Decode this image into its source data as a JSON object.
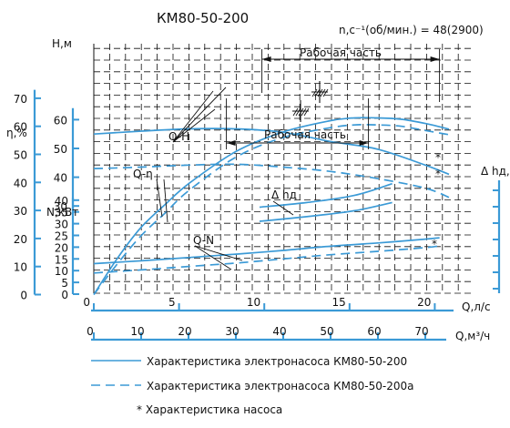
{
  "chart_data": {
    "type": "line",
    "title": "КМ80-50-200",
    "speed_label": "n,с⁻¹(об/мин.) = 48(2900)",
    "q_ls_label": "Q,л/с",
    "q_m3_label": "Q,м³/ч",
    "q_ls_ticks": [
      "0",
      "5",
      "10",
      "15",
      "20"
    ],
    "q_m3_ticks": [
      "0",
      "10",
      "20",
      "30",
      "40",
      "50",
      "60",
      "70"
    ],
    "h_axis": {
      "label": "Н,м",
      "ticks": [
        "30",
        "40",
        "50",
        "60"
      ],
      "range": [
        26,
        64
      ]
    },
    "eta_axis": {
      "label": "η,%",
      "ticks": [
        "0",
        "10",
        "20",
        "30",
        "40",
        "50",
        "60",
        "70"
      ],
      "range": [
        0,
        70
      ]
    },
    "n_axis": {
      "label": "N,кВт",
      "ticks": [
        "0",
        "5",
        "10",
        "15",
        "20",
        "25",
        "30",
        "35",
        "40"
      ],
      "range": [
        0,
        40
      ]
    },
    "npsh_axis": {
      "label": "Δ hд,м"
    },
    "work_range_label": "Рабочая часть",
    "work_range_m3h": [
      35.5,
      73
    ],
    "work_range_a_m3h": [
      28,
      58
    ],
    "markers": [
      "*",
      "*",
      "*"
    ],
    "series": [
      {
        "name": "Q-H",
        "dash": false,
        "axis": "h",
        "q_m3h": [
          0,
          10,
          20,
          30,
          40,
          50,
          60,
          70,
          75
        ],
        "values": [
          55,
          56,
          56.8,
          56.8,
          55.6,
          52.4,
          49.7,
          44.2,
          41
        ]
      },
      {
        "name": "Q-H",
        "dash": true,
        "axis": "h",
        "q_m3h": [
          0,
          10,
          20,
          30,
          40,
          50,
          60,
          70,
          75
        ],
        "values": [
          43,
          43.5,
          44.2,
          44.5,
          43.5,
          42,
          39.5,
          36.2,
          33
        ]
      },
      {
        "name": "Q-η",
        "dash": false,
        "axis": "eta",
        "q_m3h": [
          0,
          5,
          10,
          15,
          20,
          30,
          40,
          50,
          55,
          60,
          65,
          70,
          75
        ],
        "values": [
          0,
          13,
          24,
          32,
          39.5,
          51,
          58,
          62,
          63,
          63,
          62.5,
          61,
          59
        ]
      },
      {
        "name": "Q-η",
        "dash": true,
        "axis": "eta",
        "q_m3h": [
          0,
          5,
          10,
          15,
          20,
          30,
          40,
          50,
          55,
          60,
          65,
          70,
          75
        ],
        "values": [
          0,
          11,
          21,
          29,
          37,
          49,
          56,
          59.5,
          60.5,
          60.5,
          60,
          58.5,
          57
        ]
      },
      {
        "name": "Q-N",
        "dash": false,
        "axis": "n",
        "q_m3h": [
          0,
          10,
          20,
          30,
          40,
          50,
          60,
          70,
          73
        ],
        "values": [
          13,
          14.2,
          15.6,
          17,
          18.6,
          20.4,
          21.8,
          23.4,
          24
        ]
      },
      {
        "name": "Q-N",
        "dash": true,
        "axis": "n",
        "q_m3h": [
          0,
          10,
          20,
          30,
          40,
          50,
          60,
          70,
          73
        ],
        "values": [
          9,
          10.3,
          11.8,
          13.2,
          15,
          16.8,
          18.2,
          19.8,
          20.5
        ]
      },
      {
        "name": "Δ hд",
        "dash": false,
        "axis": "npsh",
        "q_m3h": [
          35,
          45,
          55,
          63
        ],
        "values": [
          37,
          39,
          42,
          47
        ]
      },
      {
        "name": "Δ hд",
        "dash": false,
        "axis": "npsh",
        "q_m3h": [
          35,
          45,
          55,
          63
        ],
        "values": [
          31,
          33,
          35.5,
          39
        ]
      }
    ],
    "grid": true
  },
  "legend": [
    {
      "text": "Характеристика электронасоса КМ80-50-200",
      "dash": false
    },
    {
      "text": "Характеристика электронасоса КМ80-50-200а",
      "dash": true
    },
    {
      "text": "* Характеристика насоса",
      "dash": null
    }
  ],
  "colors": {
    "curve": "#3b9ad6",
    "ink": "#111111",
    "grid": "#111111"
  }
}
